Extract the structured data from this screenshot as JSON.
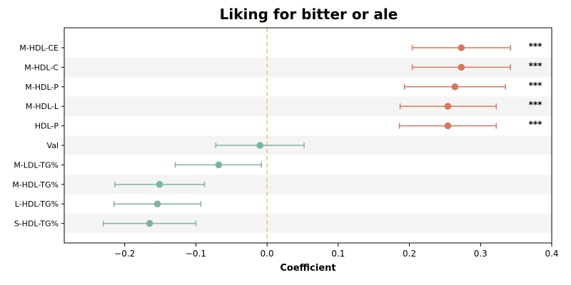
{
  "chart_data": {
    "type": "forest",
    "title": "Liking for bitter or ale",
    "xlabel": "Coefficient",
    "ylabel": "",
    "xlim": [
      -0.285,
      0.4
    ],
    "x_ticks": [
      -0.2,
      -0.1,
      0.0,
      0.1,
      0.2,
      0.3,
      0.4
    ],
    "x_tick_labels": [
      "−0.2",
      "−0.1",
      "0.0",
      "0.1",
      "0.2",
      "0.3",
      "0.4"
    ],
    "reference_line": 0.0,
    "rows": [
      {
        "label": "M-HDL-CE",
        "estimate": 0.273,
        "ci_low": 0.204,
        "ci_high": 0.342,
        "significance": "***"
      },
      {
        "label": "M-HDL-C",
        "estimate": 0.273,
        "ci_low": 0.204,
        "ci_high": 0.342,
        "significance": "***"
      },
      {
        "label": "M-HDL-P",
        "estimate": 0.264,
        "ci_low": 0.193,
        "ci_high": 0.335,
        "significance": "***"
      },
      {
        "label": "M-HDL-L",
        "estimate": 0.254,
        "ci_low": 0.187,
        "ci_high": 0.322,
        "significance": "***"
      },
      {
        "label": "HDL-P",
        "estimate": 0.254,
        "ci_low": 0.186,
        "ci_high": 0.322,
        "significance": "***"
      },
      {
        "label": "Val",
        "estimate": -0.01,
        "ci_low": -0.072,
        "ci_high": 0.052,
        "significance": ""
      },
      {
        "label": "M-LDL-TG%",
        "estimate": -0.068,
        "ci_low": -0.129,
        "ci_high": -0.008,
        "significance": ""
      },
      {
        "label": "M-HDL-TG%",
        "estimate": -0.151,
        "ci_low": -0.214,
        "ci_high": -0.088,
        "significance": ""
      },
      {
        "label": "L-HDL-TG%",
        "estimate": -0.154,
        "ci_low": -0.215,
        "ci_high": -0.093,
        "significance": ""
      },
      {
        "label": "S-HDL-TG%",
        "estimate": -0.165,
        "ci_low": -0.23,
        "ci_high": -0.1,
        "significance": ""
      }
    ],
    "colors": {
      "positive": "#d9785c",
      "negative": "#7db59a",
      "reference_line": "#f0c878",
      "band": "#f4f4f4"
    },
    "grid": false,
    "legend": "none"
  }
}
